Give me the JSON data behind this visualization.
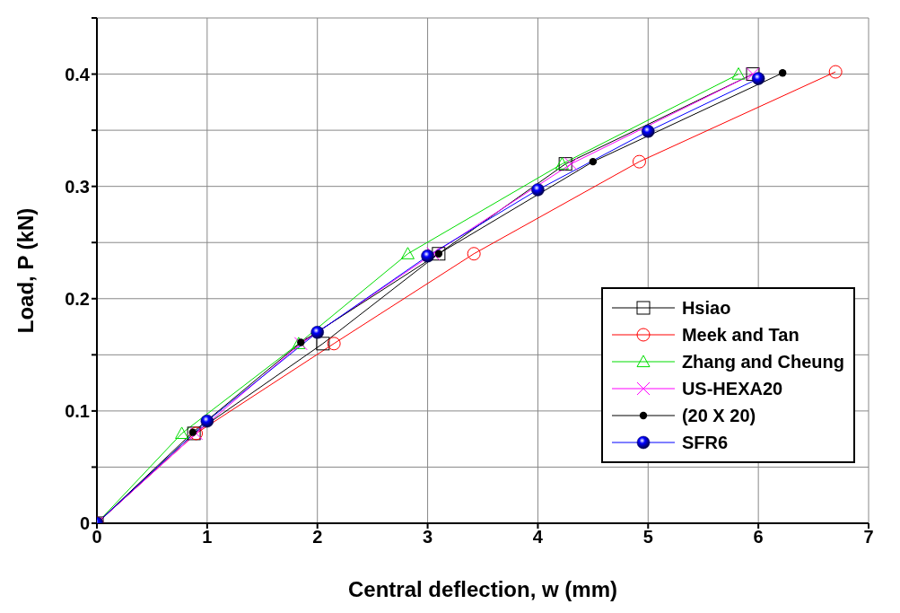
{
  "chart_data": {
    "type": "line",
    "xlabel": "Central deflection, w (mm)",
    "ylabel": "Load, P (kN)",
    "xlim": [
      0,
      7
    ],
    "xticks": [
      0,
      1,
      2,
      3,
      4,
      5,
      6,
      7
    ],
    "ylim": [
      0,
      0.45
    ],
    "yticks": [
      0,
      {
        "value": 0.05,
        "label": null
      },
      0.1,
      {
        "value": 0.15,
        "label": null
      },
      0.2,
      {
        "value": 0.25,
        "label": null
      },
      0.3,
      {
        "value": 0.35,
        "label": null
      },
      0.4,
      {
        "value": 0.45,
        "label": null
      }
    ],
    "grid": true,
    "legend": "bottom right",
    "series": [
      {
        "name": "Hsiao",
        "color": "#000000",
        "marker": "square",
        "x": [
          0,
          0.88,
          2.05,
          3.1,
          4.25,
          5.95
        ],
        "values": [
          0,
          0.08,
          0.16,
          0.24,
          0.32,
          0.4
        ]
      },
      {
        "name": "Meek and Tan",
        "color": "#ff0000",
        "marker": "circle",
        "x": [
          0,
          0.9,
          2.15,
          3.42,
          4.92,
          6.7
        ],
        "values": [
          0,
          0.08,
          0.16,
          0.24,
          0.322,
          0.402
        ]
      },
      {
        "name": "Zhang and Cheung",
        "color": "#00dd00",
        "marker": "triangle",
        "x": [
          0,
          0.77,
          1.83,
          2.82,
          4.22,
          5.82
        ],
        "values": [
          0,
          0.08,
          0.16,
          0.24,
          0.32,
          0.4
        ]
      },
      {
        "name": "US-HEXA20",
        "color": "#ff00ff",
        "marker": "cross",
        "x": [
          0,
          0.9,
          1.85,
          3.05,
          4.3,
          5.95
        ],
        "values": [
          0,
          0.08,
          0.16,
          0.24,
          0.32,
          0.4
        ]
      },
      {
        "name": "(20 X 20)",
        "color": "#000000",
        "marker": "circle",
        "x": [
          0,
          0.87,
          1.85,
          3.1,
          4.5,
          6.22
        ],
        "values": [
          0,
          0.081,
          0.161,
          0.24,
          0.322,
          0.401
        ]
      },
      {
        "name": "SFR6",
        "color": "#0000ff",
        "marker": "circle",
        "x": [
          0,
          1,
          2,
          3,
          4,
          5,
          6
        ],
        "values": [
          0,
          0.091,
          0.17,
          0.238,
          0.297,
          0.349,
          0.396
        ]
      }
    ]
  }
}
